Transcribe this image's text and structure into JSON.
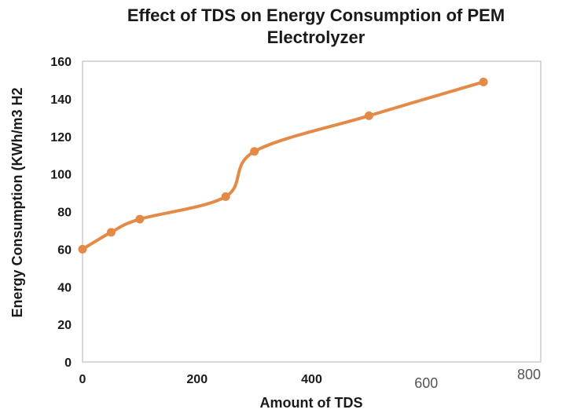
{
  "chart_data": {
    "type": "line",
    "title_lines": [
      "Effect of TDS on Energy Consumption of PEM",
      "Electrolyzer"
    ],
    "xlabel": "Amount of TDS",
    "ylabel": "Energy Consumption (KWh/m3 H2",
    "x": [
      0,
      50,
      100,
      250,
      300,
      500,
      700
    ],
    "y": [
      60,
      69,
      76,
      88,
      112,
      131,
      149
    ],
    "xlim": [
      0,
      800
    ],
    "ylim": [
      0,
      160
    ],
    "xticks": [
      0,
      200,
      400,
      600,
      800
    ],
    "xtick_labels": [
      "0",
      "200",
      "400",
      "600",
      "800"
    ],
    "yticks": [
      0,
      20,
      40,
      60,
      80,
      100,
      120,
      140,
      160
    ],
    "ytick_labels": [
      "0",
      "20",
      "40",
      "60",
      "80",
      "100",
      "120",
      "140",
      "160"
    ],
    "line_color": "#e48a48",
    "smooth": true,
    "grid": false
  }
}
